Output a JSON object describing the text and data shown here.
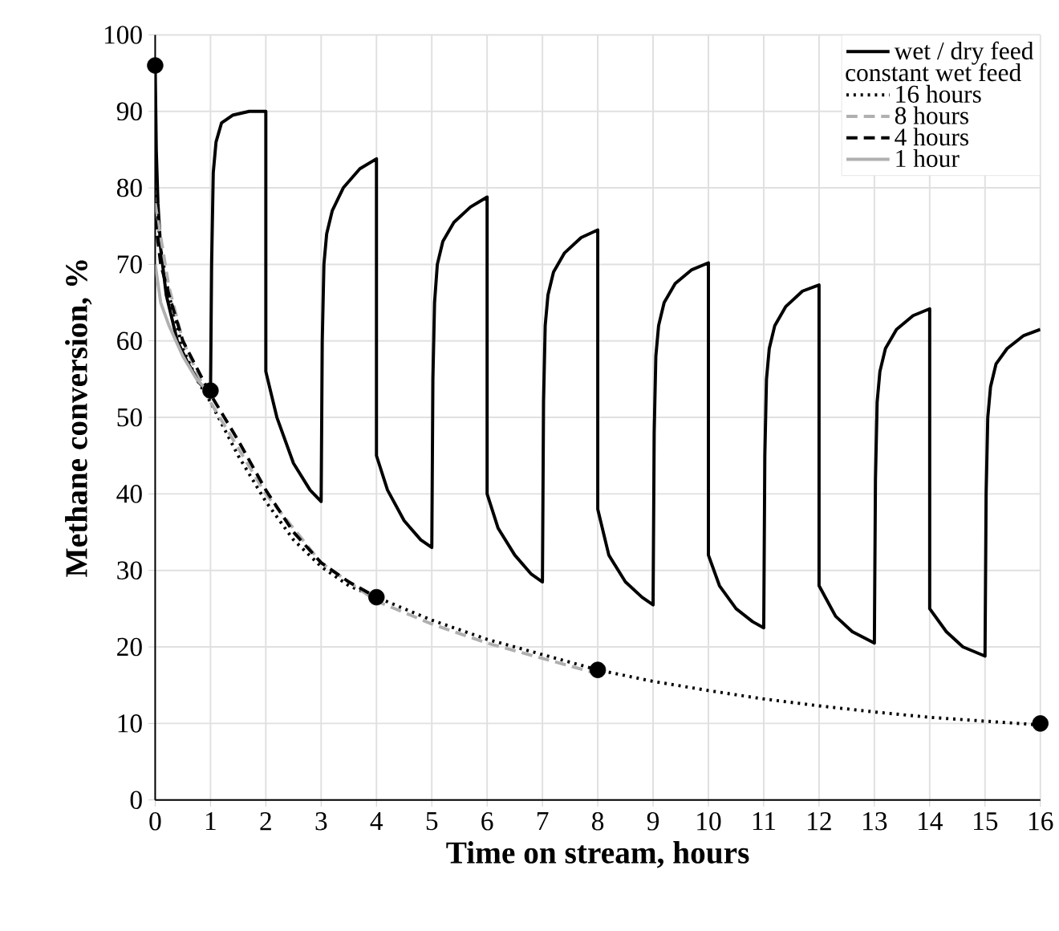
{
  "chart_data": {
    "type": "line",
    "xlabel": "Time on stream, hours",
    "ylabel": "Methane conversion, %",
    "xlim": [
      0,
      16
    ],
    "ylim": [
      0,
      100
    ],
    "xticks": [
      0,
      1,
      2,
      3,
      4,
      5,
      6,
      7,
      8,
      9,
      10,
      11,
      12,
      13,
      14,
      15,
      16
    ],
    "yticks": [
      0,
      10,
      20,
      30,
      40,
      50,
      60,
      70,
      80,
      90,
      100
    ],
    "grid": true,
    "legend": "top right",
    "annotations": [
      "constant wet feed"
    ],
    "series": [
      {
        "name": "wet / dry feed",
        "color": "#000000",
        "line_style": "solid",
        "x": [
          0,
          0.02,
          0.05,
          0.1,
          0.2,
          0.4,
          0.6,
          0.8,
          1,
          1.02,
          1.05,
          1.1,
          1.2,
          1.4,
          1.7,
          2,
          2,
          2.2,
          2.5,
          2.8,
          3,
          3.02,
          3.05,
          3.1,
          3.2,
          3.4,
          3.7,
          4,
          4,
          4.2,
          4.5,
          4.8,
          5,
          5.02,
          5.05,
          5.1,
          5.2,
          5.4,
          5.7,
          6,
          6,
          6.2,
          6.5,
          6.8,
          7,
          7.02,
          7.05,
          7.1,
          7.2,
          7.4,
          7.7,
          8,
          8,
          8.2,
          8.5,
          8.8,
          9,
          9.02,
          9.05,
          9.1,
          9.2,
          9.4,
          9.7,
          10,
          10,
          10.2,
          10.5,
          10.8,
          11,
          11.02,
          11.05,
          11.1,
          11.2,
          11.4,
          11.7,
          12,
          12,
          12.3,
          12.6,
          13,
          13.02,
          13.05,
          13.1,
          13.2,
          13.4,
          13.7,
          14,
          14,
          14.3,
          14.6,
          15,
          15.02,
          15.05,
          15.1,
          15.2,
          15.4,
          15.7,
          16
        ],
        "values": [
          96,
          85,
          78,
          72,
          66,
          60,
          57,
          54.5,
          53,
          70,
          82,
          86,
          88.5,
          89.5,
          90,
          90,
          56,
          50,
          44,
          40.5,
          39,
          60,
          70,
          74,
          77,
          80,
          82.5,
          83.8,
          45,
          40.5,
          36.5,
          34,
          33,
          55,
          65,
          70,
          73,
          75.5,
          77.5,
          78.8,
          40,
          35.5,
          32,
          29.5,
          28.5,
          52,
          62,
          66,
          69,
          71.5,
          73.5,
          74.5,
          38,
          32,
          28.5,
          26.5,
          25.5,
          48,
          58,
          62,
          65,
          67.5,
          69.3,
          70.2,
          32,
          28,
          25,
          23.3,
          22.5,
          45,
          55,
          59,
          62,
          64.5,
          66.5,
          67.3,
          28,
          24,
          22,
          20.5,
          42,
          52,
          56,
          59,
          61.5,
          63.3,
          64.2,
          25,
          22,
          20,
          18.8,
          40,
          50,
          54,
          57,
          59,
          60.7,
          61.5
        ]
      },
      {
        "name": "16 hours",
        "color": "#000000",
        "line_style": "dotted",
        "x": [
          0,
          0.1,
          0.25,
          0.5,
          0.75,
          1,
          1.5,
          2,
          2.5,
          3,
          3.5,
          4,
          5,
          6,
          7,
          8,
          9,
          10,
          11,
          12,
          13,
          14,
          15,
          16
        ],
        "values": [
          80,
          72,
          66,
          59,
          55,
          52,
          45,
          39,
          34,
          30.5,
          28,
          26.5,
          23.5,
          21,
          19,
          17,
          15.5,
          14.3,
          13.2,
          12.3,
          11.5,
          10.8,
          10.3,
          9.8
        ]
      },
      {
        "name": "8 hours",
        "color": "#b0b0b0",
        "line_style": "dashed",
        "x": [
          0,
          0.25,
          0.5,
          1,
          1.5,
          2,
          3,
          4,
          5,
          6,
          7,
          8
        ],
        "values": [
          78,
          67,
          60,
          52,
          46,
          40,
          31,
          26,
          23,
          20.5,
          18.5,
          16.5
        ]
      },
      {
        "name": "4 hours",
        "color": "#000000",
        "line_style": "dashed",
        "x": [
          0,
          0.1,
          0.25,
          0.5,
          1,
          1.5,
          2,
          2.5,
          3,
          3.5,
          4
        ],
        "values": [
          76,
          70,
          66,
          60,
          53,
          47,
          40.5,
          35,
          31,
          28.5,
          26.5
        ]
      },
      {
        "name": "1 hour",
        "color": "#b0b0b0",
        "line_style": "solid",
        "x": [
          0,
          0.1,
          0.25,
          0.5,
          0.75,
          1
        ],
        "values": [
          70,
          65,
          62,
          58,
          55,
          53
        ]
      },
      {
        "type": "scatter",
        "marker": "circle",
        "color": "#000000",
        "x": [
          0,
          1,
          4,
          8,
          16
        ],
        "values": [
          96,
          53.5,
          26.5,
          17,
          10
        ]
      }
    ]
  }
}
